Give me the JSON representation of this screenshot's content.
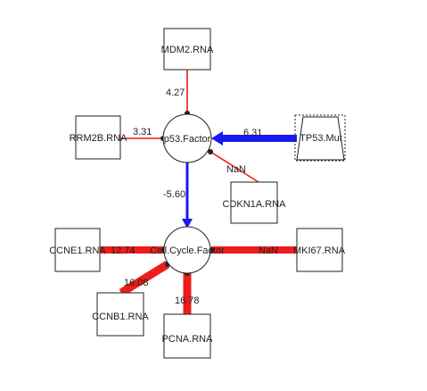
{
  "diagram": {
    "nodes": [
      {
        "id": "mdm2",
        "label": "MDM2.RNA",
        "shape": "box"
      },
      {
        "id": "rrm2b",
        "label": "RRM2B.RNA",
        "shape": "box"
      },
      {
        "id": "tp53mut",
        "label": "TP53.Mut",
        "shape": "trapezoid"
      },
      {
        "id": "cdkn1a",
        "label": "CDKN1A.RNA",
        "shape": "box"
      },
      {
        "id": "p53factor",
        "label": "p53.Factor",
        "shape": "circle"
      },
      {
        "id": "cellcycle",
        "label": "Cell.Cycle.Factor",
        "shape": "circle"
      },
      {
        "id": "ccne1",
        "label": "CCNE1.RNA",
        "shape": "box"
      },
      {
        "id": "mki67",
        "label": "MKI67.RNA",
        "shape": "box"
      },
      {
        "id": "ccnb1",
        "label": "CCNB1.RNA",
        "shape": "box"
      },
      {
        "id": "pcna",
        "label": "PCNA.RNA",
        "shape": "box"
      }
    ],
    "edges": [
      {
        "id": "mdm2-p53",
        "label": "4.27",
        "color": "#ee1c1c",
        "weight": 4.27
      },
      {
        "id": "rrm2b-p53",
        "label": "3.31",
        "color": "#ee1c1c",
        "weight": 3.31
      },
      {
        "id": "tp53mut-p53",
        "label": "6.31",
        "color": "#1a1aee",
        "weight": 6.31
      },
      {
        "id": "cdkn1a-p53",
        "label": "NaN",
        "color": "#ee1c1c",
        "weight": 1.5
      },
      {
        "id": "p53-cellcycle",
        "label": "-5.60",
        "color": "#1a1aee",
        "weight": 3.2
      },
      {
        "id": "ccne1-cellcycle",
        "label": "12.74",
        "color": "#ee1c1c",
        "weight": 12.74
      },
      {
        "id": "mki67-cellcycle",
        "label": "NaN",
        "color": "#ee1c1c",
        "weight": 12.74
      },
      {
        "id": "ccnb1-cellcycle",
        "label": "16.08",
        "color": "#ee1c1c",
        "weight": 16.08
      },
      {
        "id": "pcna-cellcycle",
        "label": "16.78",
        "color": "#ee1c1c",
        "weight": 16.78
      }
    ]
  }
}
